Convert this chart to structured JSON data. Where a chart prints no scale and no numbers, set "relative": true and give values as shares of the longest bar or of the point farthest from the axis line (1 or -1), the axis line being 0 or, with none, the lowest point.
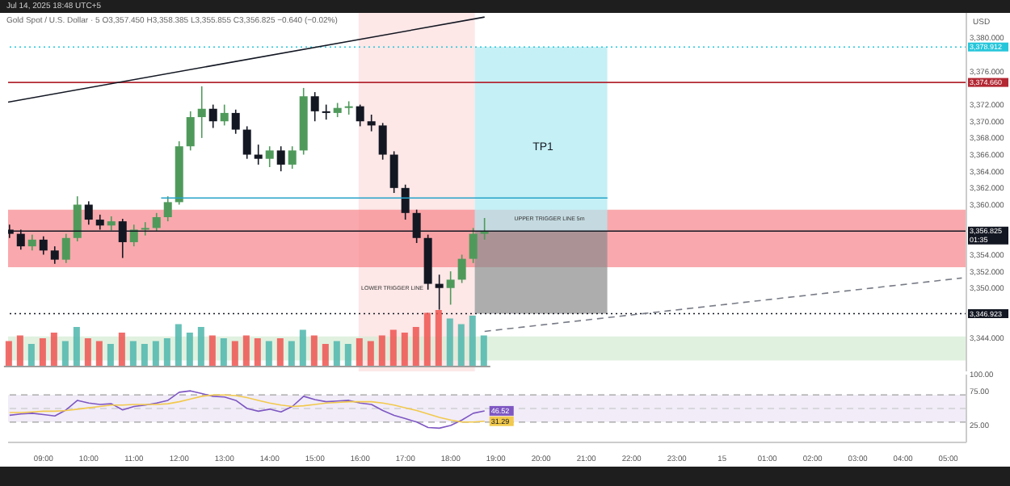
{
  "chart_data": [
    {
      "type": "candlestick",
      "title": "Gold Spot / U.S. Dollar · 5",
      "subtitle": "O3,357.450 H3,358.385 L3,355.855 C3,356.825 −0.640 (−0.02%)",
      "ylabel": "USD",
      "annotations": [
        "Jul 14, 2025 18:48 UTC+5",
        "TP1",
        "UPPER TRIGGER LINE 5m",
        "LOWER TRIGGER LINE"
      ],
      "x": [
        "2025-07-14T08:15",
        "2025-07-14T08:30",
        "2025-07-14T08:45",
        "2025-07-14T09:00",
        "2025-07-14T09:15",
        "2025-07-14T09:30",
        "2025-07-14T09:45",
        "2025-07-14T10:00",
        "2025-07-14T10:15",
        "2025-07-14T10:30",
        "2025-07-14T10:45",
        "2025-07-14T11:00",
        "2025-07-14T11:15",
        "2025-07-14T11:30",
        "2025-07-14T11:45",
        "2025-07-14T12:00",
        "2025-07-14T12:15",
        "2025-07-14T12:30",
        "2025-07-14T12:45",
        "2025-07-14T13:00",
        "2025-07-14T13:15",
        "2025-07-14T13:30",
        "2025-07-14T13:45",
        "2025-07-14T14:00",
        "2025-07-14T14:15",
        "2025-07-14T14:30",
        "2025-07-14T14:45",
        "2025-07-14T15:00",
        "2025-07-14T15:15",
        "2025-07-14T15:30",
        "2025-07-14T15:45",
        "2025-07-14T16:00",
        "2025-07-14T16:15",
        "2025-07-14T16:30",
        "2025-07-14T16:45",
        "2025-07-14T17:00",
        "2025-07-14T17:15",
        "2025-07-14T17:30",
        "2025-07-14T17:45",
        "2025-07-14T18:00",
        "2025-07-14T18:15",
        "2025-07-14T18:30",
        "2025-07-14T18:45"
      ],
      "ohlc": [
        [
          3357.0,
          3357.6,
          3356.0,
          3356.5
        ],
        [
          3356.5,
          3357.0,
          3354.6,
          3355.0
        ],
        [
          3355.0,
          3356.4,
          3354.5,
          3355.8
        ],
        [
          3355.8,
          3356.2,
          3354.0,
          3354.5
        ],
        [
          3354.5,
          3355.0,
          3352.9,
          3353.4
        ],
        [
          3353.4,
          3356.5,
          3353.0,
          3356.0
        ],
        [
          3356.0,
          3361.0,
          3355.6,
          3360.0
        ],
        [
          3360.0,
          3360.4,
          3357.6,
          3358.2
        ],
        [
          3358.2,
          3358.8,
          3357.0,
          3357.5
        ],
        [
          3357.5,
          3358.6,
          3356.9,
          3358.0
        ],
        [
          3358.0,
          3358.3,
          3353.6,
          3355.5
        ],
        [
          3355.5,
          3357.6,
          3355.0,
          3357.0
        ],
        [
          3357.0,
          3357.9,
          3356.3,
          3357.2
        ],
        [
          3357.2,
          3359.0,
          3356.8,
          3358.5
        ],
        [
          3358.5,
          3361.0,
          3358.0,
          3360.3
        ],
        [
          3360.3,
          3367.6,
          3360.0,
          3367.0
        ],
        [
          3367.0,
          3371.2,
          3366.5,
          3370.5
        ],
        [
          3370.5,
          3374.2,
          3368.0,
          3371.5
        ],
        [
          3371.5,
          3372.0,
          3369.2,
          3370.0
        ],
        [
          3370.0,
          3372.0,
          3369.5,
          3371.0
        ],
        [
          3371.0,
          3371.4,
          3368.5,
          3369.0
        ],
        [
          3369.0,
          3369.4,
          3365.5,
          3366.0
        ],
        [
          3366.0,
          3367.2,
          3364.8,
          3365.5
        ],
        [
          3365.5,
          3367.0,
          3364.5,
          3366.5
        ],
        [
          3366.5,
          3367.0,
          3364.0,
          3364.8
        ],
        [
          3364.8,
          3367.0,
          3364.3,
          3366.5
        ],
        [
          3366.5,
          3374.0,
          3366.0,
          3373.0
        ],
        [
          3373.0,
          3373.5,
          3370.0,
          3371.2
        ],
        [
          3371.2,
          3372.0,
          3370.2,
          3371.0
        ],
        [
          3371.0,
          3372.2,
          3370.5,
          3371.6
        ],
        [
          3371.6,
          3372.4,
          3370.8,
          3371.8
        ],
        [
          3371.8,
          3372.0,
          3369.4,
          3370.0
        ],
        [
          3370.0,
          3370.8,
          3368.8,
          3369.5
        ],
        [
          3369.5,
          3369.8,
          3365.4,
          3366.0
        ],
        [
          3366.0,
          3366.4,
          3361.4,
          3362.0
        ],
        [
          3362.0,
          3362.4,
          3358.2,
          3359.0
        ],
        [
          3359.0,
          3359.4,
          3355.4,
          3356.0
        ],
        [
          3356.0,
          3356.4,
          3349.8,
          3350.5
        ],
        [
          3350.5,
          3351.6,
          3347.4,
          3350.0
        ],
        [
          3350.0,
          3352.0,
          3348.0,
          3351.0
        ],
        [
          3351.0,
          3354.0,
          3350.6,
          3353.5
        ],
        [
          3353.5,
          3357.2,
          3353.0,
          3356.5
        ],
        [
          3356.5,
          3358.4,
          3355.8,
          3356.8
        ]
      ],
      "colors": [
        "#131722",
        "#131722",
        "#4f9a5b",
        "#131722",
        "#131722",
        "#4f9a5b",
        "#4f9a5b",
        "#131722",
        "#131722",
        "#4f9a5b",
        "#131722",
        "#4f9a5b",
        "#4f9a5b",
        "#4f9a5b",
        "#4f9a5b",
        "#4f9a5b",
        "#4f9a5b",
        "#4f9a5b",
        "#131722",
        "#4f9a5b",
        "#131722",
        "#131722",
        "#131722",
        "#4f9a5b",
        "#131722",
        "#4f9a5b",
        "#4f9a5b",
        "#131722",
        "#131722",
        "#4f9a5b",
        "#4f9a5b",
        "#131722",
        "#131722",
        "#131722",
        "#131722",
        "#131722",
        "#131722",
        "#131722",
        "#131722",
        "#4f9a5b",
        "#4f9a5b",
        "#4f9a5b",
        "#4f9a5b"
      ],
      "series": [
        {
          "type": "line",
          "color": "#131722",
          "line_style": "solid",
          "x": [
            "2025-07-14T08:13",
            "2025-07-14T18:45"
          ],
          "values": [
            3372.3,
            3382.5
          ]
        },
        {
          "type": "line",
          "color": "#787b86",
          "line_style": "dashed",
          "x": [
            "2025-07-14T18:45",
            "2025-07-15T05:18"
          ],
          "values": [
            3344.8,
            3351.2
          ]
        },
        {
          "type": "line",
          "color": "#26a3c9",
          "line_style": "solid",
          "x": [
            "2025-07-14T11:36",
            "2025-07-14T21:28"
          ],
          "values": [
            3360.8,
            3360.8
          ]
        }
      ],
      "xlim": [
        "2025-07-14T08:13",
        "2025-07-15T05:24"
      ],
      "ylim": [
        3340,
        3383
      ],
      "yticks": [
        {
          "value": 3380,
          "label": "3,380.000"
        },
        {
          "value": 3376,
          "label": "3,376.000"
        },
        {
          "value": 3372,
          "label": "3,372.000"
        },
        {
          "value": 3370,
          "label": "3,370.000"
        },
        {
          "value": 3368,
          "label": "3,368.000"
        },
        {
          "value": 3366,
          "label": "3,366.000"
        },
        {
          "value": 3364,
          "label": "3,364.000"
        },
        {
          "value": 3362,
          "label": "3,362.000"
        },
        {
          "value": 3360,
          "label": "3,360.000"
        },
        {
          "value": 3354,
          "label": "3,354.000"
        },
        {
          "value": 3352,
          "label": "3,352.000"
        },
        {
          "value": 3350,
          "label": "3,350.000"
        },
        {
          "value": 3344,
          "label": "3,344.000"
        }
      ],
      "tick_labels": "y",
      "grid": false,
      "legend": false,
      "bands": [
        {
          "axis": "x",
          "from": "2025-07-14T15:58",
          "to": "2025-07-14T18:32",
          "color": "#fde4e4"
        },
        {
          "axis": "y",
          "from": 3341.3,
          "to": 3344.2,
          "color": "#d4ebd3"
        },
        {
          "axis": "y",
          "from": 3352.5,
          "to": 3359.4,
          "color": "#f7848a"
        }
      ],
      "ref_lines": [
        {
          "axis": "y",
          "value": 3378.912,
          "label": "3,378.912",
          "color": "#26c6da",
          "line_style": "dotted"
        },
        {
          "axis": "y",
          "value": 3374.66,
          "label": "3,374.660",
          "color": "#b22833",
          "line_style": "solid"
        },
        {
          "axis": "y",
          "value": 3356.825,
          "label": "3,356.825\n01:35",
          "color": "#131722",
          "line_style": "solid"
        },
        {
          "axis": "y",
          "value": 3346.923,
          "label": "3,346.923",
          "color": "#131722",
          "line_style": "dotted"
        }
      ]
    },
    {
      "type": "bar",
      "relative": true,
      "categories": [
        null,
        null,
        null,
        null,
        null,
        null,
        null,
        null,
        null,
        null,
        null,
        null,
        null,
        null,
        null,
        null,
        null,
        null,
        null,
        null,
        null,
        null,
        null,
        null,
        null,
        null,
        null,
        null,
        null,
        null,
        null,
        null,
        null,
        null,
        null,
        null,
        null,
        null,
        null,
        null,
        null,
        null,
        null
      ],
      "values": [
        0.45,
        0.55,
        0.4,
        0.5,
        0.6,
        0.45,
        0.7,
        0.5,
        0.45,
        0.4,
        0.6,
        0.45,
        0.4,
        0.45,
        0.5,
        0.75,
        0.6,
        0.7,
        0.55,
        0.5,
        0.45,
        0.55,
        0.5,
        0.45,
        0.5,
        0.45,
        0.65,
        0.55,
        0.4,
        0.45,
        0.4,
        0.5,
        0.45,
        0.55,
        0.65,
        0.6,
        0.7,
        0.95,
        1,
        0.85,
        0.75,
        0.9,
        0.55
      ],
      "colors": [
        "#ef5350",
        "#ef5350",
        "#4db6ac",
        "#ef5350",
        "#ef5350",
        "#4db6ac",
        "#4db6ac",
        "#ef5350",
        "#ef5350",
        "#4db6ac",
        "#ef5350",
        "#4db6ac",
        "#4db6ac",
        "#4db6ac",
        "#4db6ac",
        "#4db6ac",
        "#4db6ac",
        "#4db6ac",
        "#ef5350",
        "#4db6ac",
        "#ef5350",
        "#ef5350",
        "#ef5350",
        "#4db6ac",
        "#ef5350",
        "#4db6ac",
        "#4db6ac",
        "#ef5350",
        "#ef5350",
        "#4db6ac",
        "#4db6ac",
        "#ef5350",
        "#ef5350",
        "#ef5350",
        "#ef5350",
        "#ef5350",
        "#ef5350",
        "#ef5350",
        "#ef5350",
        "#4db6ac",
        "#4db6ac",
        "#4db6ac",
        "#4db6ac"
      ]
    },
    {
      "type": "line",
      "x": [
        "2025-07-14T08:15",
        "2025-07-14T08:30",
        "2025-07-14T08:45",
        "2025-07-14T09:00",
        "2025-07-14T09:15",
        "2025-07-14T09:30",
        "2025-07-14T09:45",
        "2025-07-14T10:00",
        "2025-07-14T10:15",
        "2025-07-14T10:30",
        "2025-07-14T10:45",
        "2025-07-14T11:00",
        "2025-07-14T11:15",
        "2025-07-14T11:30",
        "2025-07-14T11:45",
        "2025-07-14T12:00",
        "2025-07-14T12:15",
        "2025-07-14T12:30",
        "2025-07-14T12:45",
        "2025-07-14T13:00",
        "2025-07-14T13:15",
        "2025-07-14T13:30",
        "2025-07-14T13:45",
        "2025-07-14T14:00",
        "2025-07-14T14:15",
        "2025-07-14T14:30",
        "2025-07-14T14:45",
        "2025-07-14T15:00",
        "2025-07-14T15:15",
        "2025-07-14T15:30",
        "2025-07-14T15:45",
        "2025-07-14T16:00",
        "2025-07-14T16:15",
        "2025-07-14T16:30",
        "2025-07-14T16:45",
        "2025-07-14T17:00",
        "2025-07-14T17:15",
        "2025-07-14T17:30",
        "2025-07-14T17:45",
        "2025-07-14T18:00",
        "2025-07-14T18:15",
        "2025-07-14T18:30",
        "2025-07-14T18:45"
      ],
      "series": [
        {
          "color": "#7e57c2",
          "values": [
            40,
            42,
            43,
            41,
            39,
            48,
            62,
            58,
            56,
            57,
            48,
            53,
            55,
            58,
            62,
            74,
            76,
            72,
            68,
            67,
            62,
            50,
            46,
            49,
            45,
            53,
            68,
            63,
            60,
            61,
            62,
            58,
            56,
            47,
            40,
            35,
            30,
            22,
            21,
            25,
            33,
            43,
            46.52
          ]
        },
        {
          "color": "#f2c94c",
          "values": [
            44,
            44,
            45,
            46,
            46,
            47,
            49,
            51,
            53,
            55,
            55,
            56,
            56,
            56,
            57,
            60,
            64,
            68,
            70,
            70,
            69,
            66,
            62,
            58,
            55,
            53,
            54,
            56,
            58,
            59,
            60,
            60,
            60,
            58,
            55,
            51,
            47,
            42,
            37,
            33,
            30,
            30,
            31.29
          ]
        }
      ],
      "annotations": [
        {
          "text": "46.52",
          "x": "2025-07-14T18:45",
          "y": 46.52
        },
        {
          "text": "31.29",
          "x": "2025-07-14T18:45",
          "y": 31.29
        }
      ],
      "xlim": [
        "2025-07-14T08:13",
        "2025-07-15T05:24"
      ],
      "ylim": [
        0,
        100
      ],
      "yticks": [
        {
          "value": 25,
          "label": "25.00"
        },
        {
          "value": 75,
          "label": "75.00"
        },
        {
          "value": 100,
          "label": "100.00"
        }
      ],
      "xticks": [
        {
          "value": "2025-07-14T09:00",
          "label": "09:00"
        },
        {
          "value": "2025-07-14T10:00",
          "label": "10:00"
        },
        {
          "value": "2025-07-14T11:00",
          "label": "11:00"
        },
        {
          "value": "2025-07-14T12:00",
          "label": "12:00"
        },
        {
          "value": "2025-07-14T13:00",
          "label": "13:00"
        },
        {
          "value": "2025-07-14T14:00",
          "label": "14:00"
        },
        {
          "value": "2025-07-14T15:00",
          "label": "15:00"
        },
        {
          "value": "2025-07-14T16:00",
          "label": "16:00"
        },
        {
          "value": "2025-07-14T17:00",
          "label": "17:00"
        },
        {
          "value": "2025-07-14T18:00",
          "label": "18:00"
        },
        {
          "value": "2025-07-14T19:00",
          "label": "19:00"
        },
        {
          "value": "2025-07-14T20:00",
          "label": "20:00"
        },
        {
          "value": "2025-07-14T21:00",
          "label": "21:00"
        },
        {
          "value": "2025-07-14T22:00",
          "label": "22:00"
        },
        {
          "value": "2025-07-14T23:00",
          "label": "23:00"
        },
        {
          "value": "2025-07-15T00:00",
          "label": "15"
        },
        {
          "value": "2025-07-15T01:00",
          "label": "01:00"
        },
        {
          "value": "2025-07-15T02:00",
          "label": "02:00"
        },
        {
          "value": "2025-07-15T03:00",
          "label": "03:00"
        },
        {
          "value": "2025-07-15T04:00",
          "label": "04:00"
        },
        {
          "value": "2025-07-15T05:00",
          "label": "05:00"
        }
      ],
      "bands": [
        {
          "axis": "y",
          "from": 30,
          "to": 70,
          "color": "#ede7f6"
        }
      ],
      "ref_lines": [
        {
          "axis": "y",
          "value": 70,
          "color": "#9e9e9e",
          "line_style": "dashed"
        },
        {
          "axis": "y",
          "value": 50,
          "color": "#c0c0c0",
          "line_style": "dashed"
        },
        {
          "axis": "y",
          "value": 30,
          "color": "#9e9e9e",
          "line_style": "dashed"
        }
      ],
      "grid": false,
      "legend": false
    }
  ]
}
